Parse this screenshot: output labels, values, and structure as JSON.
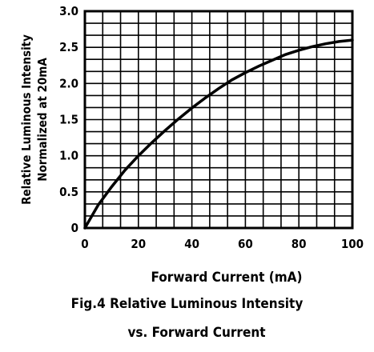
{
  "chart_data": {
    "type": "line",
    "xlabel": "Forward Current (mA)",
    "ylabel_line1": "Relative Luminous Intensity",
    "ylabel_line2": "Normalized at 20mA",
    "xlim": [
      0,
      100
    ],
    "ylim": [
      0,
      3.0
    ],
    "x_ticks": [
      "0",
      "20",
      "40",
      "60",
      "80",
      "100"
    ],
    "y_ticks": [
      "0",
      "0.5",
      "1.0",
      "1.5",
      "2.0",
      "2.5",
      "3.0"
    ],
    "grid": true,
    "series": [
      {
        "x": [
          0,
          5,
          10,
          15,
          20,
          25,
          30,
          35,
          40,
          45,
          50,
          55,
          60,
          65,
          70,
          75,
          80,
          85,
          90,
          95,
          100
        ],
        "y": [
          0,
          0.32,
          0.57,
          0.8,
          1.0,
          1.18,
          1.35,
          1.51,
          1.66,
          1.8,
          1.93,
          2.05,
          2.15,
          2.24,
          2.32,
          2.4,
          2.46,
          2.51,
          2.55,
          2.58,
          2.6
        ]
      }
    ],
    "caption_line1": "Fig.4 Relative Luminous Intensity",
    "caption_line2": "vs. Forward Current"
  }
}
